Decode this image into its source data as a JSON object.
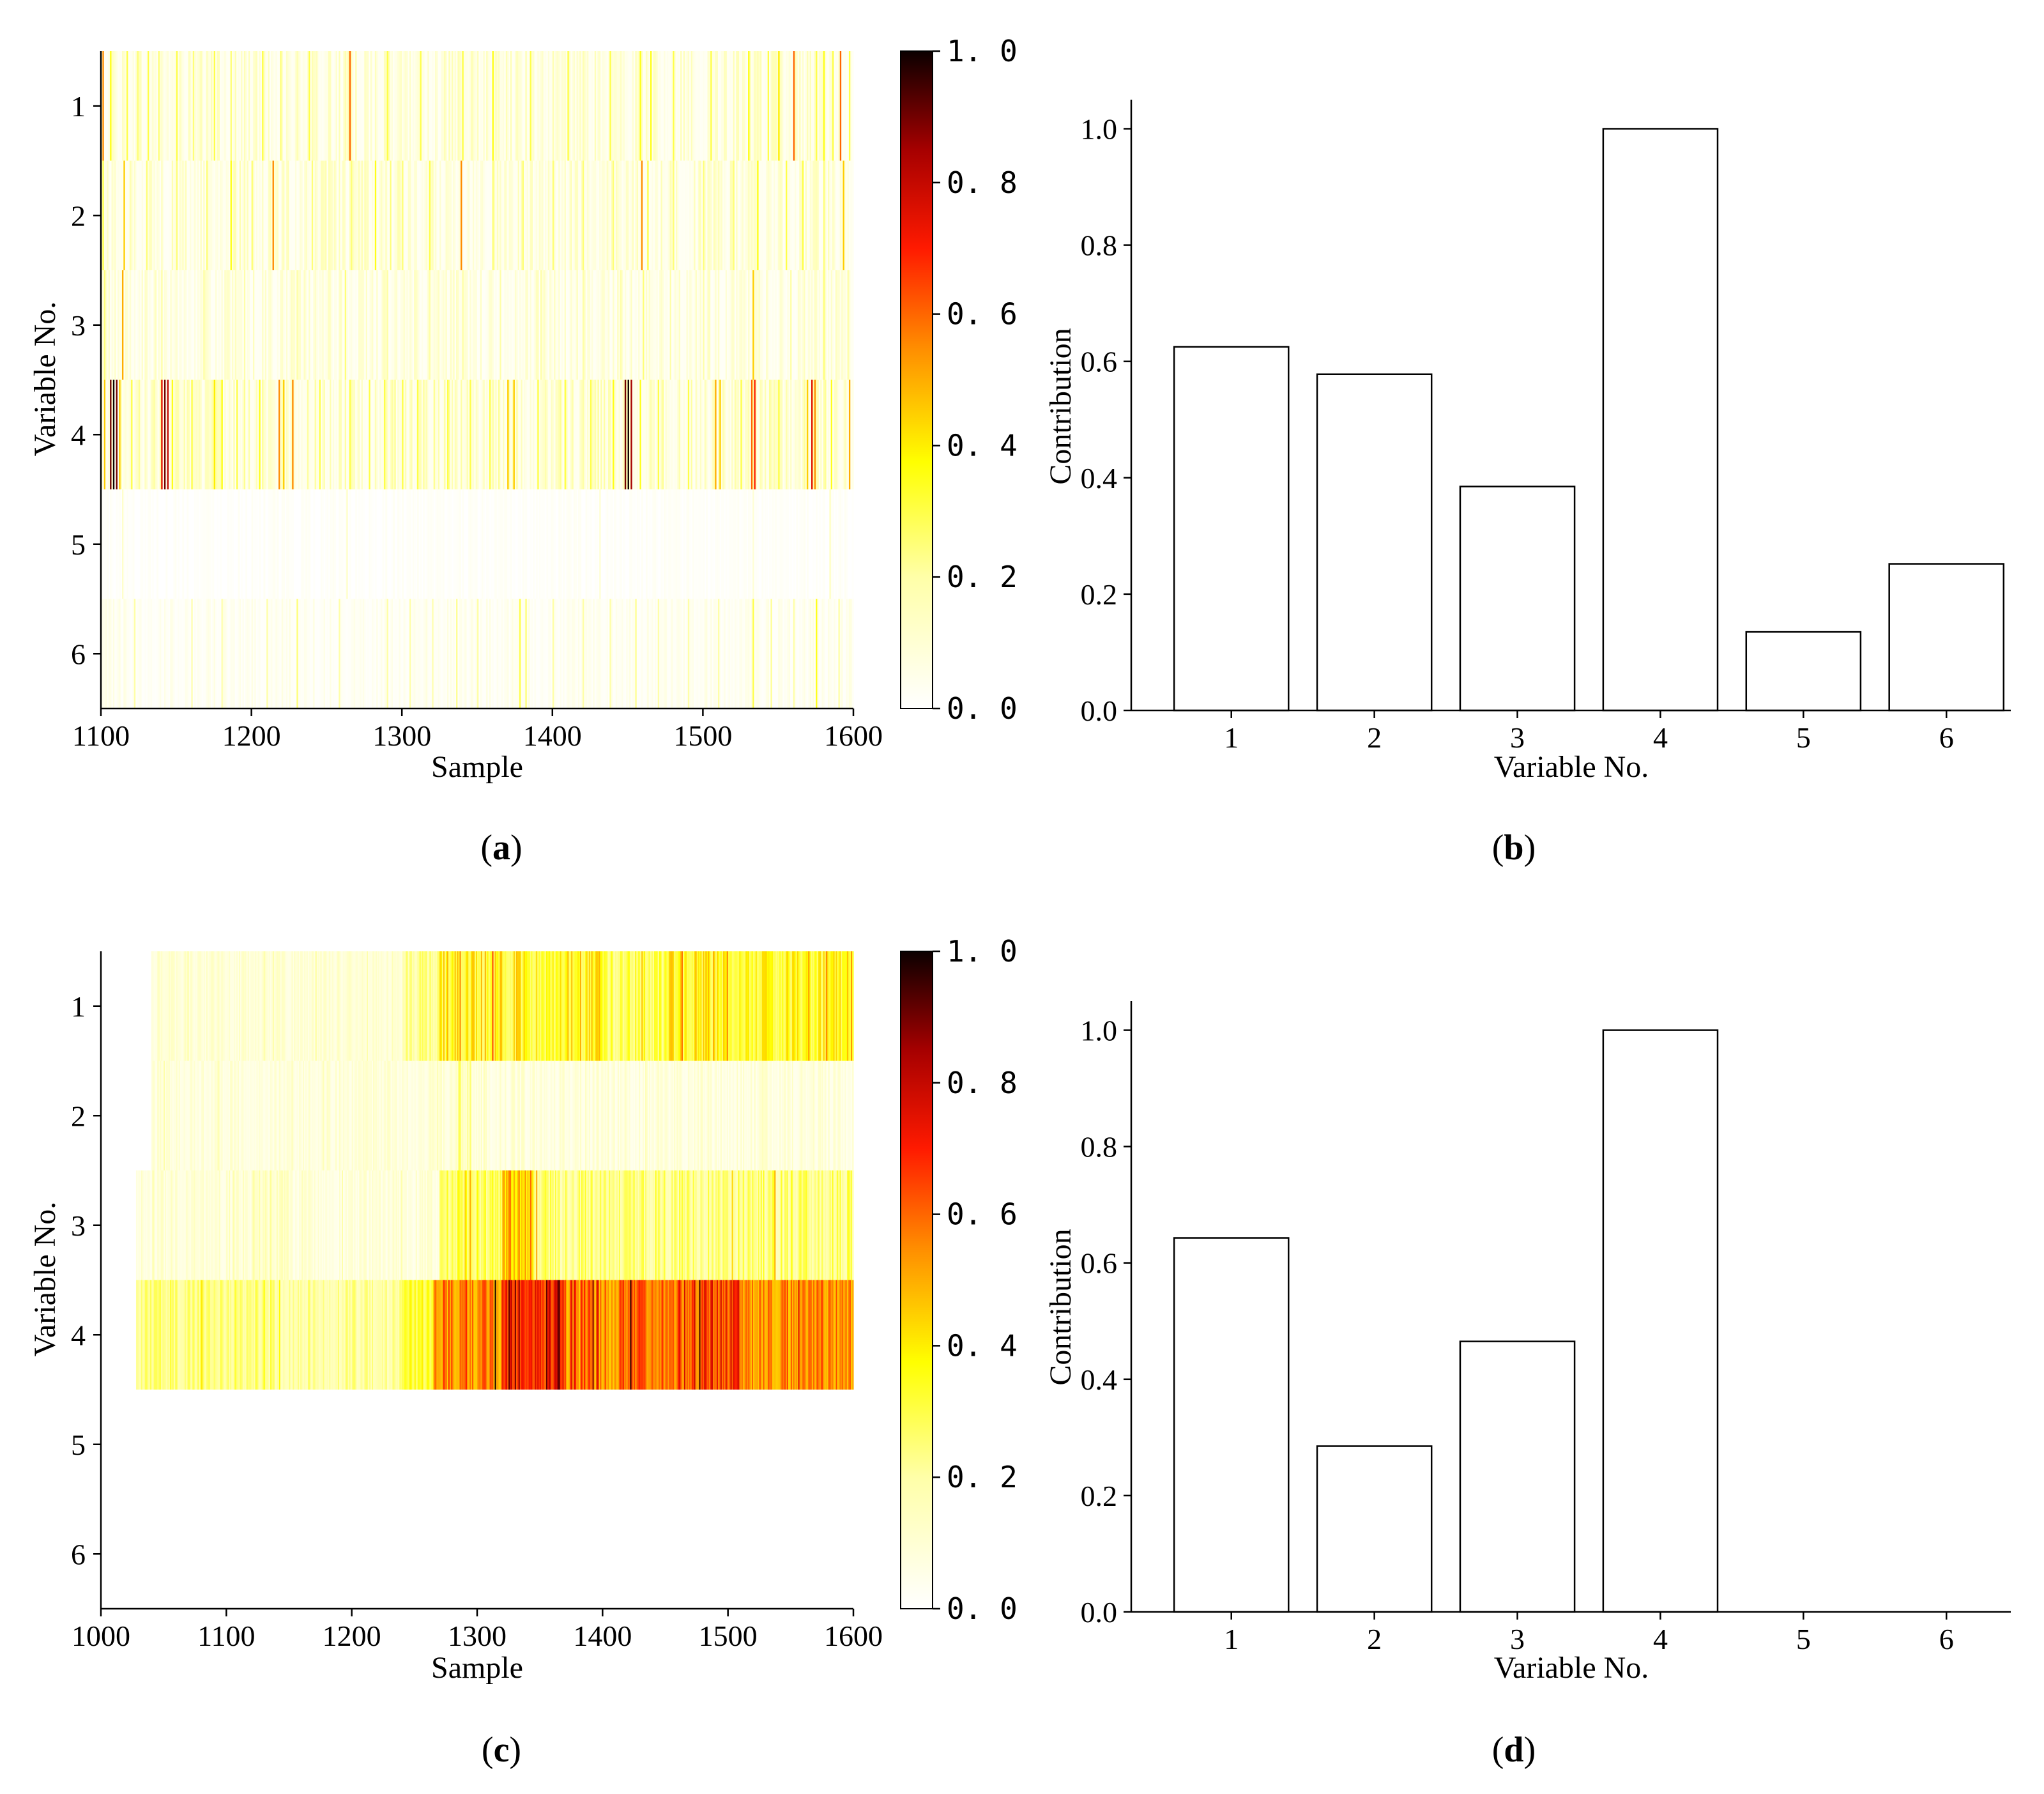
{
  "chart_data": [
    {
      "panel": "a",
      "type": "heatmap",
      "xlabel": "Sample",
      "ylabel": "Variable No.",
      "x_range": [
        1100,
        1600
      ],
      "x_ticks": [
        "1100",
        "1200",
        "1300",
        "1400",
        "1500",
        "1600"
      ],
      "y_categories": [
        "1",
        "2",
        "3",
        "4",
        "5",
        "6"
      ],
      "colorbar": {
        "min": 0.0,
        "max": 1.0,
        "ticks": [
          "0. 0",
          "0. 2",
          "0. 4",
          "0. 6",
          "0. 8",
          "1. 0"
        ],
        "colormap": "hot_r"
      },
      "rows": [
        {
          "variable": "1",
          "baseline": 0.12,
          "spikes": [
            [
              1101,
              0.55
            ],
            [
              1106,
              0.35
            ],
            [
              1117,
              0.3
            ],
            [
              1124,
              0.25
            ],
            [
              1131,
              0.3
            ],
            [
              1138,
              0.25
            ],
            [
              1150,
              0.3
            ],
            [
              1161,
              0.25
            ],
            [
              1175,
              0.3
            ],
            [
              1186,
              0.25
            ],
            [
              1207,
              0.3
            ],
            [
              1219,
              0.25
            ],
            [
              1238,
              0.3
            ],
            [
              1265,
              0.6
            ],
            [
              1290,
              0.3
            ],
            [
              1312,
              0.3
            ],
            [
              1340,
              0.3
            ],
            [
              1360,
              0.35
            ],
            [
              1385,
              0.3
            ],
            [
              1410,
              0.3
            ],
            [
              1438,
              0.3
            ],
            [
              1458,
              0.35
            ],
            [
              1465,
              0.35
            ],
            [
              1480,
              0.3
            ],
            [
              1505,
              0.3
            ],
            [
              1530,
              0.35
            ],
            [
              1543,
              0.3
            ],
            [
              1550,
              0.4
            ],
            [
              1560,
              0.6
            ],
            [
              1575,
              0.3
            ],
            [
              1580,
              0.35
            ],
            [
              1586,
              0.3
            ],
            [
              1591,
              0.6
            ],
            [
              1597,
              0.3
            ]
          ]
        },
        {
          "variable": "2",
          "baseline": 0.12,
          "spikes": [
            [
              1101,
              0.3
            ],
            [
              1115,
              0.45
            ],
            [
              1130,
              0.25
            ],
            [
              1150,
              0.25
            ],
            [
              1170,
              0.25
            ],
            [
              1186,
              0.35
            ],
            [
              1200,
              0.25
            ],
            [
              1214,
              0.55
            ],
            [
              1240,
              0.25
            ],
            [
              1266,
              0.25
            ],
            [
              1282,
              0.35
            ],
            [
              1292,
              0.25
            ],
            [
              1300,
              0.25
            ],
            [
              1318,
              0.3
            ],
            [
              1339,
              0.55
            ],
            [
              1360,
              0.25
            ],
            [
              1380,
              0.25
            ],
            [
              1400,
              0.25
            ],
            [
              1420,
              0.25
            ],
            [
              1440,
              0.25
            ],
            [
              1459,
              0.55
            ],
            [
              1463,
              0.3
            ],
            [
              1480,
              0.25
            ],
            [
              1500,
              0.25
            ],
            [
              1520,
              0.25
            ],
            [
              1536,
              0.35
            ],
            [
              1555,
              0.3
            ],
            [
              1566,
              0.3
            ],
            [
              1580,
              0.25
            ],
            [
              1593,
              0.45
            ]
          ]
        },
        {
          "variable": "3",
          "baseline": 0.1,
          "spikes": [
            [
              1102,
              0.25
            ],
            [
              1114,
              0.5
            ],
            [
              1140,
              0.2
            ],
            [
              1168,
              0.2
            ],
            [
              1195,
              0.2
            ],
            [
              1230,
              0.2
            ],
            [
              1262,
              0.25
            ],
            [
              1290,
              0.2
            ],
            [
              1318,
              0.2
            ],
            [
              1340,
              0.2
            ],
            [
              1365,
              0.2
            ],
            [
              1392,
              0.2
            ],
            [
              1420,
              0.2
            ],
            [
              1445,
              0.2
            ],
            [
              1460,
              0.25
            ],
            [
              1478,
              0.2
            ],
            [
              1500,
              0.2
            ],
            [
              1533,
              0.45
            ],
            [
              1558,
              0.2
            ],
            [
              1580,
              0.25
            ],
            [
              1596,
              0.2
            ]
          ]
        },
        {
          "variable": "4",
          "baseline": 0.15,
          "spikes": [
            [
              1102,
              0.45
            ],
            [
              1106,
              0.9
            ],
            [
              1108,
              1.0
            ],
            [
              1110,
              0.9
            ],
            [
              1112,
              0.45
            ],
            [
              1120,
              0.3
            ],
            [
              1140,
              0.75
            ],
            [
              1142,
              0.9
            ],
            [
              1144,
              0.8
            ],
            [
              1147,
              0.35
            ],
            [
              1160,
              0.3
            ],
            [
              1175,
              0.4
            ],
            [
              1180,
              0.35
            ],
            [
              1190,
              0.3
            ],
            [
              1205,
              0.35
            ],
            [
              1218,
              0.55
            ],
            [
              1221,
              0.45
            ],
            [
              1227,
              0.55
            ],
            [
              1245,
              0.3
            ],
            [
              1265,
              0.3
            ],
            [
              1278,
              0.3
            ],
            [
              1288,
              0.3
            ],
            [
              1300,
              0.3
            ],
            [
              1310,
              0.3
            ],
            [
              1330,
              0.3
            ],
            [
              1345,
              0.3
            ],
            [
              1358,
              0.3
            ],
            [
              1370,
              0.45
            ],
            [
              1374,
              0.45
            ],
            [
              1390,
              0.3
            ],
            [
              1408,
              0.3
            ],
            [
              1425,
              0.3
            ],
            [
              1440,
              0.35
            ],
            [
              1448,
              0.9
            ],
            [
              1450,
              1.0
            ],
            [
              1452,
              0.85
            ],
            [
              1458,
              0.35
            ],
            [
              1470,
              0.3
            ],
            [
              1490,
              0.3
            ],
            [
              1508,
              0.5
            ],
            [
              1511,
              0.45
            ],
            [
              1525,
              0.3
            ],
            [
              1532,
              0.6
            ],
            [
              1534,
              0.7
            ],
            [
              1550,
              0.3
            ],
            [
              1569,
              0.45
            ],
            [
              1572,
              0.75
            ],
            [
              1574,
              0.55
            ],
            [
              1585,
              0.35
            ],
            [
              1597,
              0.5
            ]
          ]
        },
        {
          "variable": "5",
          "baseline": 0.02,
          "spikes": [
            [
              1114,
              0.12
            ],
            [
              1263,
              0.1
            ],
            [
              1431,
              0.08
            ],
            [
              1533,
              0.1
            ],
            [
              1584,
              0.12
            ]
          ]
        },
        {
          "variable": "6",
          "baseline": 0.05,
          "spikes": [
            [
              1122,
              0.2
            ],
            [
              1160,
              0.18
            ],
            [
              1180,
              0.18
            ],
            [
              1210,
              0.2
            ],
            [
              1230,
              0.25
            ],
            [
              1258,
              0.2
            ],
            [
              1290,
              0.2
            ],
            [
              1305,
              0.2
            ],
            [
              1320,
              0.18
            ],
            [
              1336,
              0.22
            ],
            [
              1350,
              0.2
            ],
            [
              1378,
              0.3
            ],
            [
              1382,
              0.25
            ],
            [
              1400,
              0.2
            ],
            [
              1420,
              0.2
            ],
            [
              1438,
              0.2
            ],
            [
              1455,
              0.22
            ],
            [
              1470,
              0.2
            ],
            [
              1490,
              0.2
            ],
            [
              1510,
              0.2
            ],
            [
              1533,
              0.3
            ],
            [
              1545,
              0.22
            ],
            [
              1560,
              0.2
            ],
            [
              1575,
              0.35
            ],
            [
              1590,
              0.2
            ]
          ]
        }
      ]
    },
    {
      "panel": "b",
      "type": "bar",
      "xlabel": "Variable No.",
      "ylabel": "Contribution",
      "categories": [
        "1",
        "2",
        "3",
        "4",
        "5",
        "6"
      ],
      "values": [
        0.625,
        0.578,
        0.385,
        1.0,
        0.135,
        0.252
      ],
      "ylim": [
        0.0,
        1.05
      ],
      "y_ticks": [
        "0.0",
        "0.2",
        "0.4",
        "0.6",
        "0.8",
        "1.0"
      ]
    },
    {
      "panel": "c",
      "type": "heatmap",
      "xlabel": "Sample",
      "ylabel": "Variable No.",
      "x_range": [
        1000,
        1600
      ],
      "x_ticks": [
        "1000",
        "1100",
        "1200",
        "1300",
        "1400",
        "1500",
        "1600"
      ],
      "y_categories": [
        "1",
        "2",
        "3",
        "4",
        "5",
        "6"
      ],
      "colorbar": {
        "min": 0.0,
        "max": 1.0,
        "ticks": [
          "0. 0",
          "0. 2",
          "0. 4",
          "0. 6",
          "0. 8",
          "1. 0"
        ],
        "colormap": "hot_r"
      },
      "rows": [
        {
          "variable": "1",
          "segments": [
            [
              1040,
              1240,
              0.06,
              0.15
            ],
            [
              1240,
              1270,
              0.14,
              0.3
            ],
            [
              1270,
              1400,
              0.25,
              0.5
            ],
            [
              1400,
              1450,
              0.2,
              0.4
            ],
            [
              1450,
              1500,
              0.25,
              0.5
            ],
            [
              1500,
              1600,
              0.25,
              0.45
            ]
          ]
        },
        {
          "variable": "2",
          "segments": [
            [
              1040,
              1285,
              0.05,
              0.14
            ],
            [
              1285,
              1295,
              0.1,
              0.3
            ],
            [
              1295,
              1600,
              0.04,
              0.14
            ]
          ]
        },
        {
          "variable": "3",
          "segments": [
            [
              1028,
              1120,
              0.05,
              0.15
            ],
            [
              1120,
              1150,
              0.08,
              0.25
            ],
            [
              1150,
              1270,
              0.04,
              0.14
            ],
            [
              1270,
              1320,
              0.2,
              0.4
            ],
            [
              1320,
              1345,
              0.35,
              0.6
            ],
            [
              1345,
              1600,
              0.15,
              0.35
            ]
          ]
        },
        {
          "variable": "4",
          "segments": [
            [
              1028,
              1130,
              0.18,
              0.32
            ],
            [
              1130,
              1240,
              0.14,
              0.28
            ],
            [
              1240,
              1265,
              0.25,
              0.4
            ],
            [
              1265,
              1320,
              0.45,
              0.7
            ],
            [
              1320,
              1370,
              0.6,
              0.95
            ],
            [
              1370,
              1420,
              0.45,
              0.75
            ],
            [
              1420,
              1480,
              0.5,
              0.7
            ],
            [
              1480,
              1510,
              0.55,
              0.85
            ],
            [
              1510,
              1600,
              0.45,
              0.65
            ]
          ]
        },
        {
          "variable": "5",
          "segments": []
        },
        {
          "variable": "6",
          "segments": []
        }
      ]
    },
    {
      "panel": "d",
      "type": "bar",
      "xlabel": "Variable No.",
      "ylabel": "Contribution",
      "categories": [
        "1",
        "2",
        "3",
        "4",
        "5",
        "6"
      ],
      "values": [
        0.643,
        0.285,
        0.465,
        1.0,
        0.0,
        0.0
      ],
      "ylim": [
        0.0,
        1.05
      ],
      "y_ticks": [
        "0.0",
        "0.2",
        "0.4",
        "0.6",
        "0.8",
        "1.0"
      ]
    }
  ],
  "panel_labels": {
    "a": "a",
    "b": "b",
    "c": "c",
    "d": "d"
  }
}
